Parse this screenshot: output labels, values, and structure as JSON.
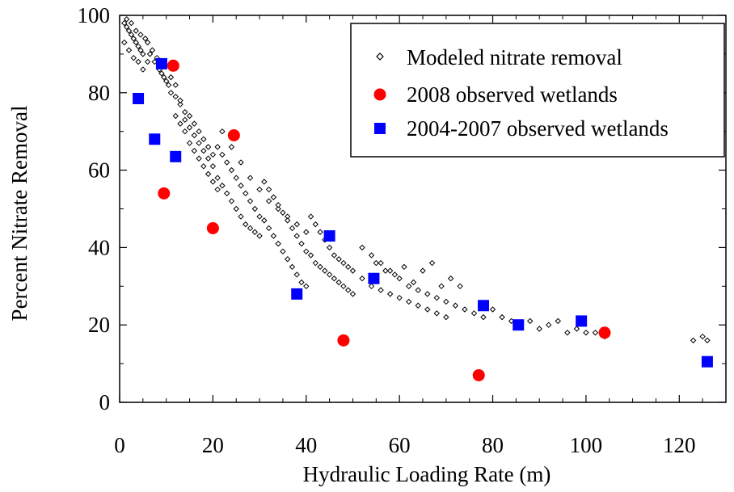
{
  "chart_data": {
    "type": "scatter",
    "xlabel": "Hydraulic Loading Rate (m)",
    "ylabel": "Percent Nitrate Removal",
    "xlim": [
      0,
      130
    ],
    "ylim": [
      0,
      100
    ],
    "xticks": [
      0,
      20,
      40,
      60,
      80,
      100,
      120
    ],
    "yticks": [
      0,
      20,
      40,
      60,
      80,
      100
    ],
    "x_tick_labels": [
      "0",
      "20",
      "40",
      "60",
      "80",
      "100",
      "120"
    ],
    "y_tick_labels": [
      "0",
      "20",
      "40",
      "60",
      "80",
      "100"
    ],
    "legend_position": "top-right",
    "series": [
      {
        "name": "Modeled nitrate removal",
        "marker": "diamond-open",
        "color": "#000000",
        "points": [
          [
            1,
            98
          ],
          [
            1.5,
            97
          ],
          [
            2,
            96
          ],
          [
            2.5,
            95
          ],
          [
            3,
            94
          ],
          [
            3.5,
            93
          ],
          [
            4,
            92
          ],
          [
            4.5,
            91
          ],
          [
            5,
            90
          ],
          [
            6,
            88
          ],
          [
            1,
            93
          ],
          [
            2,
            91
          ],
          [
            3,
            89
          ],
          [
            4,
            88
          ],
          [
            5,
            86
          ],
          [
            6,
            93
          ],
          [
            7,
            91
          ],
          [
            8,
            89
          ],
          [
            9,
            85
          ],
          [
            10,
            83
          ],
          [
            1.5,
            99
          ],
          [
            2.5,
            98
          ],
          [
            3.5,
            96
          ],
          [
            4.5,
            95
          ],
          [
            5.5,
            94
          ],
          [
            6.5,
            90
          ],
          [
            7.5,
            88
          ],
          [
            8.5,
            86
          ],
          [
            9.5,
            84
          ],
          [
            10.5,
            82
          ],
          [
            11,
            80
          ],
          [
            12,
            79
          ],
          [
            13,
            77
          ],
          [
            14,
            75
          ],
          [
            15,
            74
          ],
          [
            16,
            72
          ],
          [
            17,
            70
          ],
          [
            18,
            68
          ],
          [
            19,
            66
          ],
          [
            20,
            64
          ],
          [
            11,
            84
          ],
          [
            12,
            82
          ],
          [
            13,
            78
          ],
          [
            14,
            73
          ],
          [
            15,
            71
          ],
          [
            16,
            69
          ],
          [
            17,
            67
          ],
          [
            18,
            65
          ],
          [
            19,
            63
          ],
          [
            20,
            61
          ],
          [
            12,
            74
          ],
          [
            13,
            72
          ],
          [
            14,
            70
          ],
          [
            15,
            67
          ],
          [
            16,
            65
          ],
          [
            17,
            63
          ],
          [
            18,
            61
          ],
          [
            19,
            59
          ],
          [
            20,
            57
          ],
          [
            21,
            55
          ],
          [
            21,
            66
          ],
          [
            22,
            64
          ],
          [
            23,
            62
          ],
          [
            24,
            60
          ],
          [
            25,
            58
          ],
          [
            26,
            56
          ],
          [
            27,
            54
          ],
          [
            28,
            52
          ],
          [
            29,
            50
          ],
          [
            30,
            48
          ],
          [
            21,
            58
          ],
          [
            22,
            56
          ],
          [
            23,
            54
          ],
          [
            24,
            52
          ],
          [
            25,
            50
          ],
          [
            26,
            48
          ],
          [
            27,
            46
          ],
          [
            28,
            45
          ],
          [
            29,
            44
          ],
          [
            30,
            43
          ],
          [
            22,
            70
          ],
          [
            24,
            66
          ],
          [
            26,
            62
          ],
          [
            28,
            58
          ],
          [
            30,
            55
          ],
          [
            32,
            52
          ],
          [
            34,
            50
          ],
          [
            36,
            48
          ],
          [
            38,
            46
          ],
          [
            40,
            44
          ],
          [
            31,
            57
          ],
          [
            32,
            55
          ],
          [
            33,
            53
          ],
          [
            34,
            51
          ],
          [
            35,
            49
          ],
          [
            36,
            47
          ],
          [
            37,
            45
          ],
          [
            38,
            43
          ],
          [
            39,
            41
          ],
          [
            40,
            39
          ],
          [
            31,
            47
          ],
          [
            32,
            45
          ],
          [
            33,
            43
          ],
          [
            34,
            41
          ],
          [
            35,
            39
          ],
          [
            36,
            37
          ],
          [
            37,
            35
          ],
          [
            38,
            33
          ],
          [
            39,
            31
          ],
          [
            40,
            30
          ],
          [
            41,
            48
          ],
          [
            42,
            46
          ],
          [
            43,
            44
          ],
          [
            44,
            42
          ],
          [
            45,
            40
          ],
          [
            46,
            38
          ],
          [
            47,
            37
          ],
          [
            48,
            36
          ],
          [
            49,
            35
          ],
          [
            50,
            34
          ],
          [
            41,
            38
          ],
          [
            42,
            36
          ],
          [
            43,
            35
          ],
          [
            44,
            34
          ],
          [
            45,
            33
          ],
          [
            46,
            32
          ],
          [
            47,
            31
          ],
          [
            48,
            30
          ],
          [
            49,
            29
          ],
          [
            50,
            28
          ],
          [
            52,
            40
          ],
          [
            54,
            38
          ],
          [
            56,
            36
          ],
          [
            58,
            34
          ],
          [
            60,
            32
          ],
          [
            62,
            30
          ],
          [
            64,
            29
          ],
          [
            66,
            28
          ],
          [
            68,
            27
          ],
          [
            70,
            26
          ],
          [
            52,
            32
          ],
          [
            54,
            30
          ],
          [
            56,
            29
          ],
          [
            58,
            28
          ],
          [
            60,
            27
          ],
          [
            62,
            26
          ],
          [
            64,
            25
          ],
          [
            66,
            24
          ],
          [
            68,
            23
          ],
          [
            70,
            22
          ],
          [
            55,
            36
          ],
          [
            57,
            34
          ],
          [
            59,
            33
          ],
          [
            61,
            35
          ],
          [
            63,
            31
          ],
          [
            65,
            34
          ],
          [
            67,
            36
          ],
          [
            69,
            30
          ],
          [
            71,
            32
          ],
          [
            73,
            30
          ],
          [
            72,
            25
          ],
          [
            74,
            24
          ],
          [
            76,
            23
          ],
          [
            78,
            22
          ],
          [
            80,
            24
          ],
          [
            82,
            22
          ],
          [
            84,
            21
          ],
          [
            86,
            20
          ],
          [
            88,
            21
          ],
          [
            90,
            19
          ],
          [
            92,
            20
          ],
          [
            94,
            21
          ],
          [
            96,
            18
          ],
          [
            98,
            19
          ],
          [
            100,
            18
          ],
          [
            102,
            18
          ],
          [
            104,
            17
          ],
          [
            123,
            16
          ],
          [
            125,
            17
          ],
          [
            126,
            16
          ]
        ]
      },
      {
        "name": "2008 observed wetlands",
        "marker": "circle-filled",
        "color": "#ff0000",
        "points": [
          [
            11.5,
            87
          ],
          [
            9.5,
            54
          ],
          [
            20,
            45
          ],
          [
            24.5,
            69
          ],
          [
            48,
            16
          ],
          [
            77,
            7
          ],
          [
            104,
            18
          ]
        ]
      },
      {
        "name": "2004-2007 observed wetlands",
        "marker": "square-filled",
        "color": "#0000ff",
        "points": [
          [
            4,
            78.5
          ],
          [
            7.5,
            68
          ],
          [
            9,
            87.5
          ],
          [
            12,
            63.5
          ],
          [
            38,
            28
          ],
          [
            45,
            43
          ],
          [
            54.5,
            32
          ],
          [
            78,
            25
          ],
          [
            85.5,
            20
          ],
          [
            99,
            21
          ],
          [
            126,
            10.5
          ]
        ]
      }
    ]
  }
}
